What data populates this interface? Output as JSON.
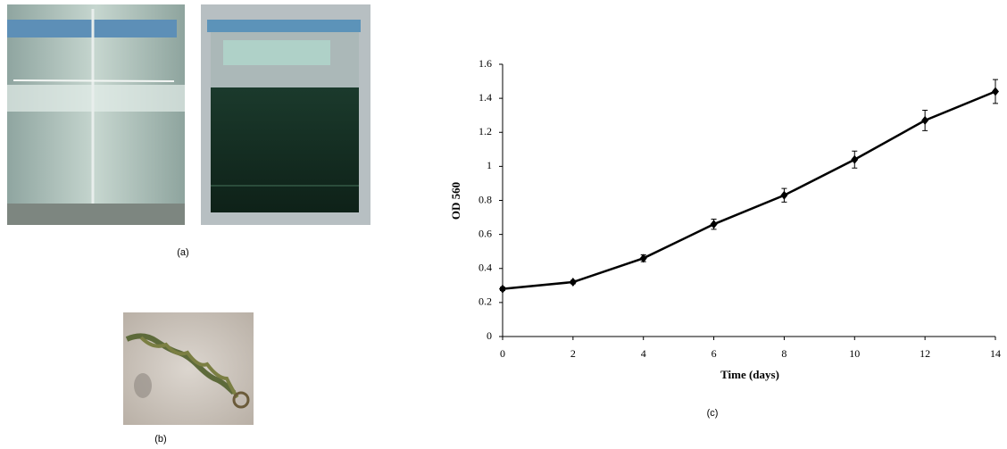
{
  "panels": {
    "a": "(a)",
    "b": "(b)"
  },
  "chart_data": {
    "type": "line",
    "caption": "(c)",
    "x_label": "Time (days)",
    "y_label": "OD 560",
    "x": [
      0,
      2,
      4,
      6,
      8,
      10,
      12,
      14
    ],
    "values": [
      0.28,
      0.32,
      0.46,
      0.66,
      0.83,
      1.04,
      1.27,
      1.44
    ],
    "errors": [
      0.01,
      0.01,
      0.02,
      0.03,
      0.04,
      0.05,
      0.06,
      0.07
    ],
    "color": "#000000",
    "xlim": [
      0,
      14
    ],
    "xticks": [
      0,
      2,
      4,
      6,
      8,
      10,
      12,
      14
    ],
    "ylim": [
      0,
      1.6
    ],
    "yticks": [
      0,
      0.2,
      0.4,
      0.6,
      0.8,
      1,
      1.2,
      1.4,
      1.6
    ]
  }
}
